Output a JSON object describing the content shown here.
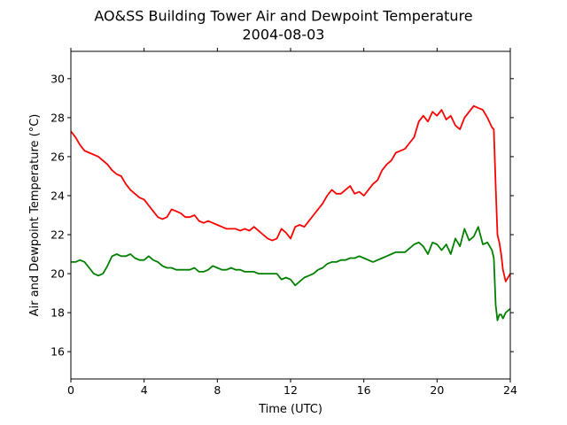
{
  "chart_data": {
    "type": "line",
    "title": "AO&SS Building Tower Air and Dewpoint Temperature",
    "subtitle": "2004-08-03",
    "xlabel": "Time (UTC)",
    "ylabel": "Air and Dewpoint Temperature (°C)",
    "xlim": [
      0,
      24
    ],
    "ylim": [
      14.6,
      31.4
    ],
    "xticks": [
      "0",
      "4",
      "8",
      "12",
      "16",
      "20",
      "24"
    ],
    "yticks": [
      "16",
      "18",
      "20",
      "22",
      "24",
      "26",
      "28",
      "30"
    ],
    "grid": false,
    "legend": "none",
    "series": [
      {
        "color": "#ff0000",
        "x": [
          0,
          0.25,
          0.5,
          0.75,
          1.0,
          1.25,
          1.5,
          1.75,
          2.0,
          2.25,
          2.5,
          2.75,
          3.0,
          3.25,
          3.5,
          3.75,
          4.0,
          4.25,
          4.5,
          4.75,
          5.0,
          5.25,
          5.5,
          5.75,
          6.0,
          6.25,
          6.5,
          6.75,
          7.0,
          7.25,
          7.5,
          7.75,
          8.0,
          8.25,
          8.5,
          8.75,
          9.0,
          9.25,
          9.5,
          9.75,
          10.0,
          10.25,
          10.5,
          10.75,
          11.0,
          11.25,
          11.5,
          11.75,
          12.0,
          12.25,
          12.5,
          12.75,
          13.0,
          13.25,
          13.5,
          13.75,
          14.0,
          14.25,
          14.5,
          14.75,
          15.0,
          15.25,
          15.5,
          15.75,
          16.0,
          16.25,
          16.5,
          16.75,
          17.0,
          17.25,
          17.5,
          17.75,
          18.0,
          18.25,
          18.5,
          18.75,
          19.0,
          19.25,
          19.5,
          19.75,
          20.0,
          20.25,
          20.5,
          20.75,
          21.0,
          21.25,
          21.5,
          21.75,
          22.0,
          22.25,
          22.5,
          22.75,
          23.0,
          23.1,
          23.2,
          23.3,
          23.4,
          23.5,
          23.6,
          23.75,
          24.0
        ],
        "y": [
          27.3,
          27.0,
          26.6,
          26.3,
          26.2,
          26.1,
          26.0,
          25.8,
          25.6,
          25.3,
          25.1,
          25.0,
          24.6,
          24.3,
          24.1,
          23.9,
          23.8,
          23.5,
          23.2,
          22.9,
          22.8,
          22.9,
          23.3,
          23.2,
          23.1,
          22.9,
          22.9,
          23.0,
          22.7,
          22.6,
          22.7,
          22.6,
          22.5,
          22.4,
          22.3,
          22.3,
          22.3,
          22.2,
          22.3,
          22.2,
          22.4,
          22.2,
          22.0,
          21.8,
          21.7,
          21.8,
          22.3,
          22.1,
          21.8,
          22.4,
          22.5,
          22.4,
          22.7,
          23.0,
          23.3,
          23.6,
          24.0,
          24.3,
          24.1,
          24.1,
          24.3,
          24.5,
          24.1,
          24.2,
          24.0,
          24.3,
          24.6,
          24.8,
          25.3,
          25.6,
          25.8,
          26.2,
          26.3,
          26.4,
          26.7,
          27.0,
          27.8,
          28.1,
          27.8,
          28.3,
          28.1,
          28.4,
          27.9,
          28.1,
          27.6,
          27.4,
          28.0,
          28.3,
          28.6,
          28.5,
          28.4,
          28.0,
          27.5,
          27.4,
          24.5,
          22.0,
          21.6,
          21.0,
          20.2,
          19.6,
          20.0
        ]
      },
      {
        "color": "#008000",
        "x": [
          0,
          0.25,
          0.5,
          0.75,
          1.0,
          1.25,
          1.5,
          1.75,
          2.0,
          2.25,
          2.5,
          2.75,
          3.0,
          3.25,
          3.5,
          3.75,
          4.0,
          4.25,
          4.5,
          4.75,
          5.0,
          5.25,
          5.5,
          5.75,
          6.0,
          6.25,
          6.5,
          6.75,
          7.0,
          7.25,
          7.5,
          7.75,
          8.0,
          8.25,
          8.5,
          8.75,
          9.0,
          9.25,
          9.5,
          9.75,
          10.0,
          10.25,
          10.5,
          10.75,
          11.0,
          11.25,
          11.5,
          11.75,
          12.0,
          12.25,
          12.5,
          12.75,
          13.0,
          13.25,
          13.5,
          13.75,
          14.0,
          14.25,
          14.5,
          14.75,
          15.0,
          15.25,
          15.5,
          15.75,
          16.0,
          16.25,
          16.5,
          16.75,
          17.0,
          17.25,
          17.5,
          17.75,
          18.0,
          18.25,
          18.5,
          18.75,
          19.0,
          19.25,
          19.5,
          19.75,
          20.0,
          20.25,
          20.5,
          20.75,
          21.0,
          21.25,
          21.5,
          21.75,
          22.0,
          22.25,
          22.5,
          22.75,
          23.0,
          23.1,
          23.2,
          23.3,
          23.4,
          23.5,
          23.6,
          23.75,
          24.0
        ],
        "y": [
          20.6,
          20.6,
          20.7,
          20.6,
          20.3,
          20.0,
          19.9,
          20.0,
          20.4,
          20.9,
          21.0,
          20.9,
          20.9,
          21.0,
          20.8,
          20.7,
          20.7,
          20.9,
          20.7,
          20.6,
          20.4,
          20.3,
          20.3,
          20.2,
          20.2,
          20.2,
          20.2,
          20.3,
          20.1,
          20.1,
          20.2,
          20.4,
          20.3,
          20.2,
          20.2,
          20.3,
          20.2,
          20.2,
          20.1,
          20.1,
          20.1,
          20.0,
          20.0,
          20.0,
          20.0,
          20.0,
          19.7,
          19.8,
          19.7,
          19.4,
          19.6,
          19.8,
          19.9,
          20.0,
          20.2,
          20.3,
          20.5,
          20.6,
          20.6,
          20.7,
          20.7,
          20.8,
          20.8,
          20.9,
          20.8,
          20.7,
          20.6,
          20.7,
          20.8,
          20.9,
          21.0,
          21.1,
          21.1,
          21.1,
          21.3,
          21.5,
          21.6,
          21.4,
          21.0,
          21.6,
          21.5,
          21.2,
          21.5,
          21.0,
          21.8,
          21.4,
          22.3,
          21.7,
          21.9,
          22.4,
          21.5,
          21.6,
          21.2,
          20.8,
          18.4,
          17.6,
          17.9,
          17.9,
          17.7,
          18.0,
          18.2
        ]
      }
    ]
  }
}
